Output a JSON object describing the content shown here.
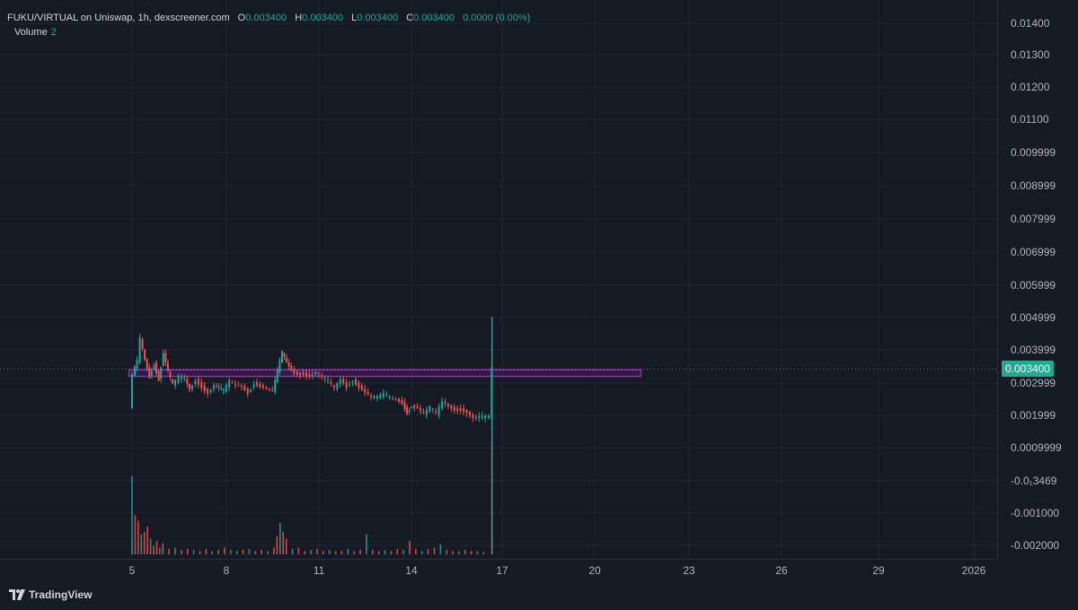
{
  "header": {
    "symbol": "FUKU/VIRTUAL on Uniswap, 1h, dexscreener.com",
    "ohlc": [
      {
        "key": "O",
        "value": "0.003400"
      },
      {
        "key": "H",
        "value": "0.003400"
      },
      {
        "key": "L",
        "value": "0.003400"
      },
      {
        "key": "C",
        "value": "0.003400"
      }
    ],
    "change": "0.0000 (0.00%)",
    "volume_label": "Volume",
    "volume_value": "2"
  },
  "price_axis": {
    "labels": [
      "0.01400",
      "0.01300",
      "0.01200",
      "0.01100",
      "0.009999",
      "0.008999",
      "0.007999",
      "0.006999",
      "0.005999",
      "0.004999",
      "0.003999",
      "0.002999",
      "0.001999",
      "0.0009999",
      "-0.0₁3469",
      "-0.001000",
      "-0.002000"
    ],
    "last_price": "0.003400"
  },
  "time_axis": {
    "labels": [
      "5",
      "8",
      "11",
      "14",
      "17",
      "20",
      "23",
      "26",
      "29",
      "2026"
    ]
  },
  "footer": {
    "brand": "TradingView"
  },
  "colors": {
    "up": "#26a69a",
    "down": "#ef5350",
    "background": "#161a25",
    "grid": "#232733",
    "zone": "#9c27b0",
    "last_price": "#22ab94"
  },
  "chart_data": {
    "type": "candlestick",
    "title": "FUKU/VIRTUAL on Uniswap, 1h, dexscreener.com",
    "x_unit": "day",
    "ylim": [
      -0.0022,
      0.0143
    ],
    "last_price": 0.0034,
    "zone": {
      "x_start": 4.9,
      "x_end": 21.5,
      "y_low": 0.00318,
      "y_high": 0.00338
    },
    "price_path": [
      [
        4.95,
        0.0022
      ],
      [
        5.05,
        0.0032
      ],
      [
        5.2,
        0.0036
      ],
      [
        5.3,
        0.0043
      ],
      [
        5.45,
        0.0037
      ],
      [
        5.6,
        0.0032
      ],
      [
        5.75,
        0.0036
      ],
      [
        5.9,
        0.0031
      ],
      [
        6.05,
        0.0039
      ],
      [
        6.2,
        0.0033
      ],
      [
        6.35,
        0.0029
      ],
      [
        6.55,
        0.0031
      ],
      [
        6.75,
        0.0031
      ],
      [
        6.9,
        0.0028
      ],
      [
        7.1,
        0.0031
      ],
      [
        7.3,
        0.0029
      ],
      [
        7.5,
        0.0027
      ],
      [
        7.7,
        0.0029
      ],
      [
        7.85,
        0.0028
      ],
      [
        8.0,
        0.0027
      ],
      [
        8.2,
        0.003
      ],
      [
        8.4,
        0.0029
      ],
      [
        8.6,
        0.0029
      ],
      [
        8.8,
        0.0027
      ],
      [
        9.0,
        0.003
      ],
      [
        9.2,
        0.0029
      ],
      [
        9.4,
        0.0028
      ],
      [
        9.6,
        0.0027
      ],
      [
        9.75,
        0.0033
      ],
      [
        9.9,
        0.0039
      ],
      [
        10.05,
        0.0036
      ],
      [
        10.2,
        0.0034
      ],
      [
        10.4,
        0.0033
      ],
      [
        10.6,
        0.0033
      ],
      [
        10.8,
        0.0032
      ],
      [
        11.0,
        0.0033
      ],
      [
        11.2,
        0.0031
      ],
      [
        11.4,
        0.003
      ],
      [
        11.6,
        0.0028
      ],
      [
        11.8,
        0.0031
      ],
      [
        12.0,
        0.0029
      ],
      [
        12.2,
        0.0031
      ],
      [
        12.4,
        0.0029
      ],
      [
        12.6,
        0.0027
      ],
      [
        12.8,
        0.0025
      ],
      [
        13.0,
        0.0025
      ],
      [
        13.2,
        0.0026
      ],
      [
        13.4,
        0.0025
      ],
      [
        13.6,
        0.0025
      ],
      [
        13.8,
        0.0024
      ],
      [
        13.95,
        0.0021
      ],
      [
        14.1,
        0.0023
      ],
      [
        14.3,
        0.0022
      ],
      [
        14.5,
        0.002
      ],
      [
        14.7,
        0.0022
      ],
      [
        14.9,
        0.002
      ],
      [
        15.1,
        0.0024
      ],
      [
        15.3,
        0.0023
      ],
      [
        15.5,
        0.0022
      ],
      [
        15.7,
        0.0022
      ],
      [
        15.9,
        0.0021
      ],
      [
        16.1,
        0.0019
      ],
      [
        16.3,
        0.0019
      ],
      [
        16.5,
        0.0019
      ],
      [
        16.62,
        0.0019
      ],
      [
        16.7,
        0.0034
      ]
    ],
    "spike": {
      "x": 16.67,
      "high": 0.005,
      "low": 0.0019
    },
    "volume": [
      [
        5.0,
        70
      ],
      [
        5.1,
        35
      ],
      [
        5.2,
        30
      ],
      [
        5.3,
        18
      ],
      [
        5.4,
        20
      ],
      [
        5.5,
        25
      ],
      [
        5.6,
        14
      ],
      [
        5.7,
        8
      ],
      [
        5.8,
        12
      ],
      [
        5.9,
        6
      ],
      [
        6.0,
        10
      ],
      [
        6.2,
        5
      ],
      [
        6.4,
        6
      ],
      [
        6.6,
        4
      ],
      [
        6.8,
        5
      ],
      [
        7.0,
        4
      ],
      [
        7.2,
        3
      ],
      [
        7.4,
        5
      ],
      [
        7.6,
        3
      ],
      [
        7.8,
        4
      ],
      [
        8.0,
        6
      ],
      [
        8.2,
        4
      ],
      [
        8.4,
        3
      ],
      [
        8.6,
        4
      ],
      [
        8.8,
        5
      ],
      [
        9.0,
        3
      ],
      [
        9.2,
        4
      ],
      [
        9.4,
        3
      ],
      [
        9.6,
        6
      ],
      [
        9.7,
        16
      ],
      [
        9.8,
        28
      ],
      [
        9.9,
        20
      ],
      [
        10.0,
        14
      ],
      [
        10.2,
        5
      ],
      [
        10.4,
        6
      ],
      [
        10.6,
        3
      ],
      [
        10.8,
        4
      ],
      [
        11.0,
        5
      ],
      [
        11.2,
        3
      ],
      [
        11.4,
        4
      ],
      [
        11.6,
        3
      ],
      [
        11.8,
        3
      ],
      [
        12.0,
        5
      ],
      [
        12.2,
        3
      ],
      [
        12.4,
        4
      ],
      [
        12.6,
        18
      ],
      [
        12.8,
        4
      ],
      [
        13.0,
        3
      ],
      [
        13.2,
        4
      ],
      [
        13.4,
        3
      ],
      [
        13.6,
        5
      ],
      [
        13.8,
        4
      ],
      [
        14.0,
        12
      ],
      [
        14.2,
        5
      ],
      [
        14.4,
        3
      ],
      [
        14.6,
        5
      ],
      [
        14.8,
        6
      ],
      [
        15.0,
        9
      ],
      [
        15.2,
        4
      ],
      [
        15.4,
        3
      ],
      [
        15.6,
        3
      ],
      [
        15.8,
        4
      ],
      [
        16.0,
        3
      ],
      [
        16.2,
        3
      ],
      [
        16.4,
        2
      ],
      [
        16.67,
        100
      ]
    ]
  }
}
